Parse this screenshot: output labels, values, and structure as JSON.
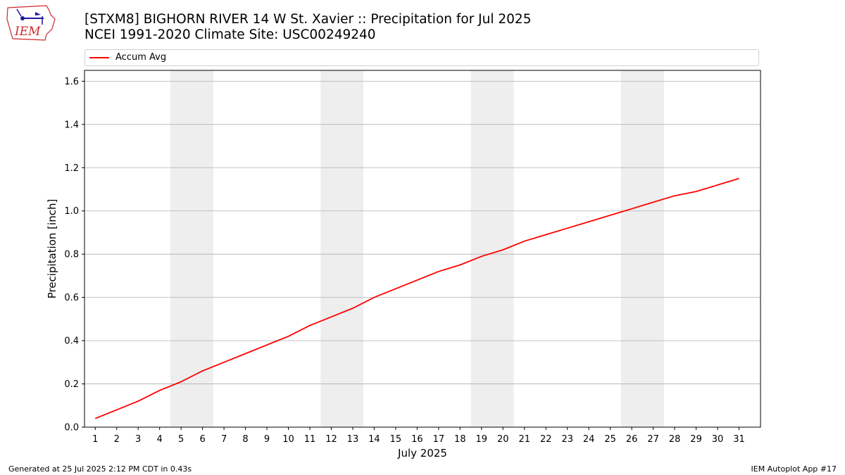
{
  "title": {
    "line1": "[STXM8] BIGHORN RIVER 14 W St. Xavier :: Precipitation for Jul 2025",
    "line2": "NCEI 1991-2020 Climate Site: USC00249240"
  },
  "logo": {
    "text": "IEM"
  },
  "footer": {
    "left": "Generated at 25 Jul 2025 2:12 PM CDT in 0.43s",
    "right": "IEM Autoplot App #17"
  },
  "colors": {
    "line": "#ff0000",
    "weekend_band": "#eeeeee",
    "grid": "#b0b0b0"
  },
  "chart_data": {
    "type": "line",
    "xlabel": "July 2025",
    "ylabel": "Precipitation [inch]",
    "xlim": [
      0.5,
      32
    ],
    "ylim": [
      0,
      1.65
    ],
    "x_ticks": [
      1,
      2,
      3,
      4,
      5,
      6,
      7,
      8,
      9,
      10,
      11,
      12,
      13,
      14,
      15,
      16,
      17,
      18,
      19,
      20,
      21,
      22,
      23,
      24,
      25,
      26,
      27,
      28,
      29,
      30,
      31
    ],
    "y_ticks": [
      0.0,
      0.2,
      0.4,
      0.6,
      0.8,
      1.0,
      1.2,
      1.4,
      1.6
    ],
    "y_tick_labels": [
      "0.0",
      "0.2",
      "0.4",
      "0.6",
      "0.8",
      "1.0",
      "1.2",
      "1.4",
      "1.6"
    ],
    "grid": "horizontal",
    "legend_position": "top",
    "shaded_days": [
      [
        5,
        6
      ],
      [
        12,
        13
      ],
      [
        19,
        20
      ],
      [
        26,
        27
      ]
    ],
    "series": [
      {
        "name": "Accum Avg",
        "x": [
          1,
          2,
          3,
          4,
          5,
          6,
          7,
          8,
          9,
          10,
          11,
          12,
          13,
          14,
          15,
          16,
          17,
          18,
          19,
          20,
          21,
          22,
          23,
          24,
          25,
          26,
          27,
          28,
          29,
          30,
          31
        ],
        "values": [
          0.04,
          0.08,
          0.12,
          0.17,
          0.21,
          0.26,
          0.3,
          0.34,
          0.38,
          0.42,
          0.47,
          0.51,
          0.55,
          0.6,
          0.64,
          0.68,
          0.72,
          0.75,
          0.79,
          0.82,
          0.86,
          0.89,
          0.92,
          0.95,
          0.98,
          1.01,
          1.04,
          1.07,
          1.09,
          1.12,
          1.15
        ]
      }
    ]
  }
}
